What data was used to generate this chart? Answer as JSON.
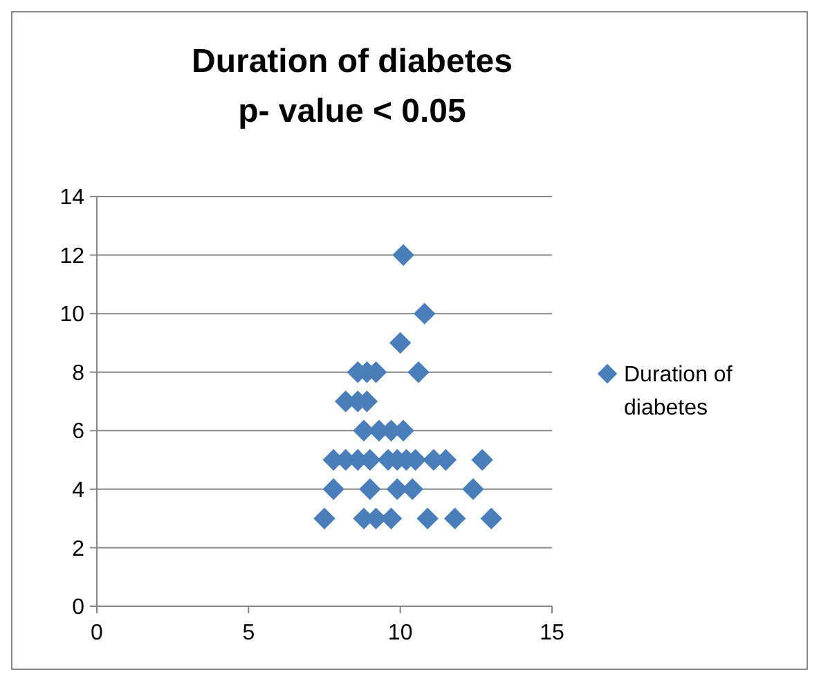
{
  "chart_data": {
    "type": "scatter",
    "title": "Duration of diabetes\np- value < 0.05",
    "series": [
      {
        "name": "Duration of diabetes",
        "color": "#4a7ebb",
        "x": [
          10.1,
          10.8,
          10.0,
          8.6,
          8.9,
          9.2,
          10.6,
          8.2,
          8.6,
          8.9,
          8.8,
          9.3,
          9.7,
          10.1,
          7.8,
          8.2,
          8.6,
          9.0,
          9.6,
          9.9,
          10.2,
          10.5,
          11.1,
          11.5,
          12.7,
          7.8,
          9.0,
          9.9,
          10.4,
          12.4,
          7.5,
          8.8,
          9.2,
          9.7,
          10.9,
          11.8,
          13.0
        ],
        "values": [
          12,
          10,
          9,
          8,
          8,
          8,
          8,
          7,
          7,
          7,
          6,
          6,
          6,
          6,
          5,
          5,
          5,
          5,
          5,
          5,
          5,
          5,
          5,
          5,
          5,
          4,
          4,
          4,
          4,
          4,
          3,
          3,
          3,
          3,
          3,
          3,
          3
        ]
      }
    ],
    "xlim": [
      0,
      15
    ],
    "xticks": [
      0,
      5,
      10,
      15
    ],
    "ylim": [
      0,
      14
    ],
    "yticks": [
      0,
      2,
      4,
      6,
      8,
      10,
      12,
      14
    ],
    "grid": "y",
    "legend": "right",
    "marker": "diamond"
  }
}
